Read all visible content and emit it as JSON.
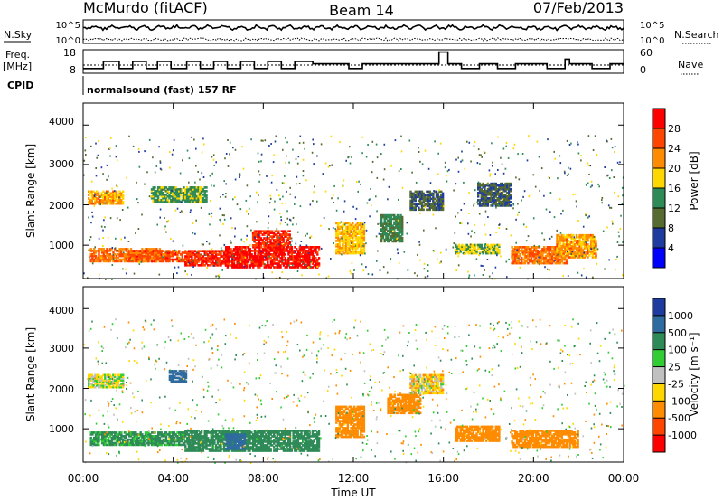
{
  "header": {
    "station": "McMurdo (fitACF)",
    "beam": "Beam 14",
    "date": "07/Feb/2013"
  },
  "noise_panel": {
    "left_label": "N.Sky",
    "right_label": "N.Search",
    "left_ticks": [
      "10^5",
      "10^0"
    ],
    "right_ticks": [
      "10^5",
      "10^0"
    ]
  },
  "freq_panel": {
    "left_label_line1": "Freq.",
    "left_label_line2": "[MHz]",
    "right_label": "Nave",
    "left_ticks": [
      "18",
      "8"
    ],
    "right_ticks": [
      "60",
      "0"
    ]
  },
  "cpid": {
    "label": "CPID",
    "text": "normalsound (fast) 157 RF"
  },
  "power_panel": {
    "ylabel": "Slant Range [km]",
    "yticks": [
      "4000",
      "3000",
      "2000",
      "1000"
    ],
    "cbar_label": "Power [dB]",
    "cbar_ticks": [
      "28",
      "24",
      "20",
      "16",
      "12",
      "8",
      "4"
    ],
    "cbar_colors": [
      "#ff0000",
      "#ff4500",
      "#ff8c00",
      "#ffd700",
      "#2e8b57",
      "#556b2f",
      "#1e3ca0",
      "#0000ff"
    ]
  },
  "velocity_panel": {
    "ylabel": "Slant Range [km]",
    "yticks": [
      "4000",
      "3000",
      "2000",
      "1000"
    ],
    "cbar_label": "Velocity [m s⁻¹]",
    "cbar_ticks": [
      "1000",
      "500",
      "100",
      "25",
      "-25",
      "-100",
      "-500",
      "-1000"
    ],
    "cbar_colors": [
      "#1e3ca0",
      "#2e6b9e",
      "#2e8b57",
      "#32cd32",
      "#c0c0c0",
      "#ffd700",
      "#ff8c00",
      "#ff4500",
      "#ff0000"
    ]
  },
  "x_axis": {
    "ticks": [
      "00:00",
      "04:00",
      "08:00",
      "12:00",
      "16:00",
      "20:00",
      "00:00"
    ],
    "label": "Time UT"
  },
  "chart_data": [
    {
      "type": "line",
      "panel": "noise",
      "series": [
        {
          "name": "N.Sky"
        },
        {
          "name": "N.Search"
        }
      ],
      "xlim": [
        "00:00",
        "24:00"
      ],
      "ylim_left": [
        "10^0",
        "10^5"
      ],
      "ylim_right": [
        "10^0",
        "10^5"
      ]
    },
    {
      "type": "line",
      "panel": "frequency",
      "series": [
        {
          "name": "Freq.",
          "x_hours": [
            0.0,
            0.9,
            1.6,
            2.2,
            2.8,
            3.3,
            3.9,
            4.6,
            5.2,
            5.8,
            6.4,
            7.0,
            7.6,
            8.2,
            8.8,
            9.4,
            10.2,
            11.0,
            11.8,
            12.4,
            13.2,
            14.0,
            14.8,
            15.6,
            15.8,
            16.2,
            16.8,
            17.6,
            18.4,
            19.2,
            20.0,
            20.6,
            21.4,
            21.6,
            22.0,
            22.6,
            23.4,
            24.0
          ],
          "y_mhz": [
            10,
            13,
            10,
            13,
            10,
            13,
            10,
            13,
            10,
            13,
            10,
            13,
            10,
            13,
            10,
            13,
            12,
            12,
            10,
            12,
            12,
            12,
            12,
            12,
            17,
            12,
            10,
            12,
            10,
            12,
            12,
            10,
            14,
            12,
            12,
            10,
            12,
            12
          ]
        },
        {
          "name": "Nave"
        }
      ],
      "ylim_left": [
        8,
        18
      ],
      "ylim_right": [
        0,
        60
      ]
    },
    {
      "type": "heatmap",
      "panel": "power",
      "xlabel": "Time UT",
      "ylabel": "Slant Range [km]",
      "xlim": [
        "00:00",
        "24:00"
      ],
      "ylim": [
        180,
        4600
      ],
      "colorbar": {
        "label": "Power [dB]",
        "range": [
          0,
          30
        ]
      },
      "regions": [
        {
          "t_start": 0.2,
          "t_end": 1.8,
          "r_start": 2050,
          "r_end": 2400,
          "value": 20
        },
        {
          "t_start": 0.3,
          "t_end": 3.5,
          "r_start": 600,
          "r_end": 950,
          "value": 22
        },
        {
          "t_start": 2.0,
          "t_end": 4.5,
          "r_start": 600,
          "r_end": 900,
          "value": 24
        },
        {
          "t_start": 4.5,
          "t_end": 6.5,
          "r_start": 500,
          "r_end": 900,
          "value": 26
        },
        {
          "t_start": 6.3,
          "t_end": 10.5,
          "r_start": 450,
          "r_end": 1000,
          "value": 28
        },
        {
          "t_start": 7.5,
          "t_end": 9.2,
          "r_start": 1000,
          "r_end": 1400,
          "value": 26
        },
        {
          "t_start": 3.0,
          "t_end": 5.5,
          "r_start": 2100,
          "r_end": 2500,
          "value": 14
        },
        {
          "t_start": 11.2,
          "t_end": 12.5,
          "r_start": 800,
          "r_end": 1600,
          "value": 18
        },
        {
          "t_start": 13.2,
          "t_end": 14.2,
          "r_start": 1100,
          "r_end": 1800,
          "value": 12
        },
        {
          "t_start": 16.5,
          "t_end": 18.5,
          "r_start": 800,
          "r_end": 1050,
          "value": 16
        },
        {
          "t_start": 19.0,
          "t_end": 21.5,
          "r_start": 550,
          "r_end": 1000,
          "value": 22
        },
        {
          "t_start": 21.0,
          "t_end": 22.8,
          "r_start": 700,
          "r_end": 1300,
          "value": 20
        },
        {
          "t_start": 14.5,
          "t_end": 16.0,
          "r_start": 1900,
          "r_end": 2400,
          "value": 8
        },
        {
          "t_start": 17.5,
          "t_end": 19.0,
          "r_start": 2000,
          "r_end": 2600,
          "value": 8
        }
      ]
    },
    {
      "type": "heatmap",
      "panel": "velocity",
      "xlabel": "Time UT",
      "ylabel": "Slant Range [km]",
      "xlim": [
        "00:00",
        "24:00"
      ],
      "ylim": [
        180,
        4600
      ],
      "colorbar": {
        "label": "Velocity [m s⁻¹]",
        "range": [
          -1000,
          1000
        ]
      },
      "regions": [
        {
          "t_start": 0.2,
          "t_end": 1.8,
          "r_start": 2050,
          "r_end": 2400,
          "value": 0
        },
        {
          "t_start": 0.3,
          "t_end": 4.5,
          "r_start": 600,
          "r_end": 950,
          "value": 150
        },
        {
          "t_start": 4.5,
          "t_end": 10.5,
          "r_start": 450,
          "r_end": 1000,
          "value": 200
        },
        {
          "t_start": 6.3,
          "t_end": 7.2,
          "r_start": 500,
          "r_end": 900,
          "value": 800
        },
        {
          "t_start": 11.2,
          "t_end": 12.5,
          "r_start": 800,
          "r_end": 1600,
          "value": -200
        },
        {
          "t_start": 13.5,
          "t_end": 15.0,
          "r_start": 1400,
          "r_end": 1900,
          "value": -300
        },
        {
          "t_start": 16.5,
          "t_end": 18.5,
          "r_start": 700,
          "r_end": 1100,
          "value": -300
        },
        {
          "t_start": 19.0,
          "t_end": 22.0,
          "r_start": 550,
          "r_end": 1000,
          "value": -400
        },
        {
          "t_start": 14.5,
          "t_end": 16.0,
          "r_start": 1900,
          "r_end": 2400,
          "value": -50
        },
        {
          "t_start": 3.8,
          "t_end": 4.6,
          "r_start": 2200,
          "r_end": 2500,
          "value": 700
        }
      ]
    }
  ]
}
